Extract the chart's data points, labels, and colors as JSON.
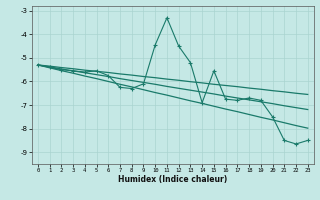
{
  "x": [
    0,
    1,
    2,
    3,
    4,
    5,
    6,
    7,
    8,
    9,
    10,
    11,
    12,
    13,
    14,
    15,
    16,
    17,
    18,
    19,
    20,
    21,
    22,
    23
  ],
  "y_jagged": [
    -5.3,
    -5.4,
    -5.5,
    -5.55,
    -5.6,
    -5.55,
    -5.75,
    -6.25,
    -6.3,
    -6.1,
    -4.45,
    -3.3,
    -4.5,
    -5.2,
    -6.9,
    -5.55,
    -6.75,
    -6.8,
    -6.7,
    -6.8,
    -7.5,
    -8.5,
    -8.65,
    -8.5
  ],
  "y_reg1": [
    -5.3,
    -5.42,
    -5.54,
    -5.65,
    -5.77,
    -5.88,
    -6.0,
    -6.12,
    -6.23,
    -6.35,
    -6.47,
    -6.58,
    -6.7,
    -6.82,
    -6.93,
    -7.05,
    -7.17,
    -7.28,
    -7.4,
    -7.52,
    -7.63,
    -7.75,
    -7.87,
    -7.98
  ],
  "y_reg2": [
    -5.3,
    -5.38,
    -5.47,
    -5.55,
    -5.63,
    -5.71,
    -5.79,
    -5.88,
    -5.96,
    -6.04,
    -6.12,
    -6.21,
    -6.29,
    -6.37,
    -6.45,
    -6.53,
    -6.62,
    -6.7,
    -6.78,
    -6.86,
    -6.94,
    -7.03,
    -7.11,
    -7.19
  ],
  "y_reg3": [
    -5.3,
    -5.35,
    -5.41,
    -5.46,
    -5.52,
    -5.57,
    -5.62,
    -5.68,
    -5.73,
    -5.79,
    -5.84,
    -5.9,
    -5.95,
    -6.01,
    -6.06,
    -6.12,
    -6.17,
    -6.22,
    -6.28,
    -6.33,
    -6.39,
    -6.44,
    -6.5,
    -6.55
  ],
  "color": "#1a7a6a",
  "bg_color": "#c5e8e5",
  "grid_color": "#aad4d0",
  "xlabel": "Humidex (Indice chaleur)",
  "ylim": [
    -9.5,
    -2.8
  ],
  "xlim": [
    -0.5,
    23.5
  ],
  "yticks": [
    -9,
    -8,
    -7,
    -6,
    -5,
    -4,
    -3
  ],
  "xticks": [
    0,
    1,
    2,
    3,
    4,
    5,
    6,
    7,
    8,
    9,
    10,
    11,
    12,
    13,
    14,
    15,
    16,
    17,
    18,
    19,
    20,
    21,
    22,
    23
  ]
}
